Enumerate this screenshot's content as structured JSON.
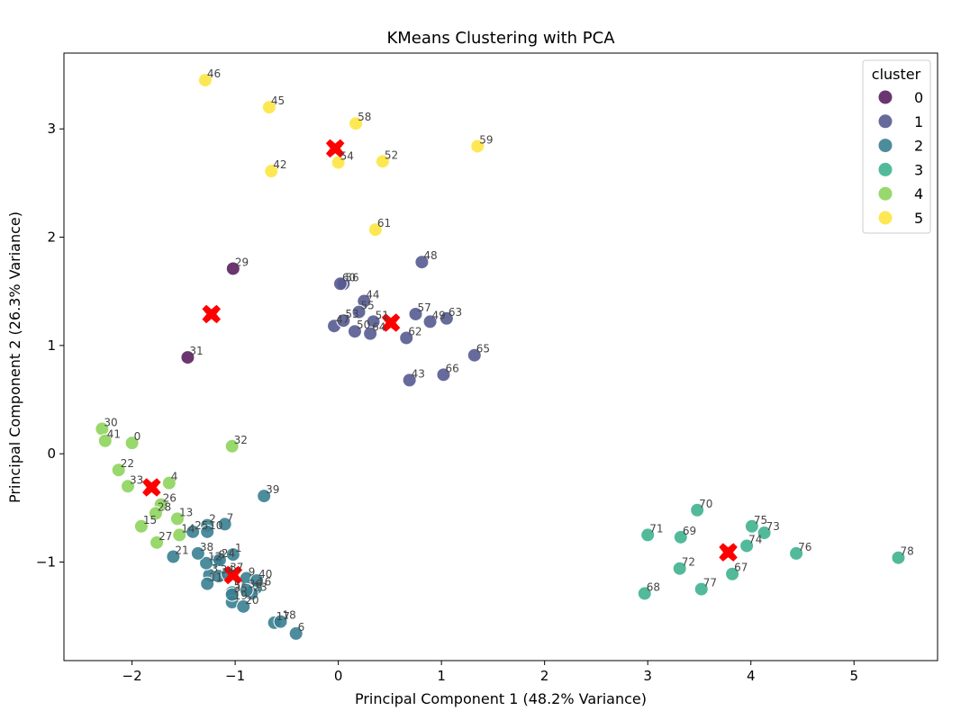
{
  "chart_data": {
    "type": "scatter",
    "title": "KMeans Clustering with PCA",
    "xlabel": "Principal Component 1 (48.2% Variance)",
    "ylabel": "Principal Component 2 (26.3% Variance)",
    "xlim": [
      -2.66,
      5.81
    ],
    "ylim": [
      -1.91,
      3.7
    ],
    "xticks": [
      -2,
      -1,
      0,
      1,
      2,
      3,
      4,
      5
    ],
    "yticks": [
      -1,
      0,
      1,
      2,
      3
    ],
    "xtick_labels": [
      "−2",
      "−1",
      "0",
      "1",
      "2",
      "3",
      "4",
      "5"
    ],
    "ytick_labels": [
      "−1",
      "0",
      "1",
      "2",
      "3"
    ],
    "grid": false,
    "legend": {
      "title": "cluster",
      "position": "top-right",
      "entries": [
        "0",
        "1",
        "2",
        "3",
        "4",
        "5"
      ]
    },
    "cluster_colors": [
      "#5b2060",
      "#575b91",
      "#3a7f91",
      "#3fb28f",
      "#8dd45c",
      "#fde541"
    ],
    "centroid_color": "#ff0000",
    "points": [
      {
        "label": "0",
        "x": -2.0,
        "y": 0.1,
        "cluster": 4
      },
      {
        "label": "1",
        "x": -1.02,
        "y": -0.93,
        "cluster": 2
      },
      {
        "label": "2",
        "x": -1.27,
        "y": -0.66,
        "cluster": 2
      },
      {
        "label": "3",
        "x": -1.25,
        "y": -1.12,
        "cluster": 2
      },
      {
        "label": "4",
        "x": -1.64,
        "y": -0.27,
        "cluster": 4
      },
      {
        "label": "5",
        "x": -1.03,
        "y": -1.28,
        "cluster": 2
      },
      {
        "label": "6",
        "x": -0.41,
        "y": -1.66,
        "cluster": 2
      },
      {
        "label": "7",
        "x": -1.1,
        "y": -0.65,
        "cluster": 2
      },
      {
        "label": "8",
        "x": -1.18,
        "y": -0.99,
        "cluster": 2
      },
      {
        "label": "9",
        "x": -0.89,
        "y": -1.15,
        "cluster": 2
      },
      {
        "label": "10",
        "x": -1.27,
        "y": -0.72,
        "cluster": 2
      },
      {
        "label": "11",
        "x": -1.27,
        "y": -1.2,
        "cluster": 2
      },
      {
        "label": "12",
        "x": -1.28,
        "y": -1.01,
        "cluster": 2
      },
      {
        "label": "13",
        "x": -1.56,
        "y": -0.6,
        "cluster": 4
      },
      {
        "label": "14",
        "x": -1.54,
        "y": -0.75,
        "cluster": 4
      },
      {
        "label": "15",
        "x": -1.91,
        "y": -0.67,
        "cluster": 4
      },
      {
        "label": "16",
        "x": -0.8,
        "y": -1.24,
        "cluster": 2
      },
      {
        "label": "17",
        "x": -0.62,
        "y": -1.56,
        "cluster": 2
      },
      {
        "label": "18",
        "x": -0.56,
        "y": -1.55,
        "cluster": 2
      },
      {
        "label": "19",
        "x": -1.03,
        "y": -1.37,
        "cluster": 2
      },
      {
        "label": "20",
        "x": -0.92,
        "y": -1.41,
        "cluster": 2
      },
      {
        "label": "21",
        "x": -1.6,
        "y": -0.95,
        "cluster": 2
      },
      {
        "label": "22",
        "x": -2.13,
        "y": -0.15,
        "cluster": 4
      },
      {
        "label": "23",
        "x": -0.84,
        "y": -1.29,
        "cluster": 2
      },
      {
        "label": "24",
        "x": -1.15,
        "y": -0.98,
        "cluster": 2
      },
      {
        "label": "25",
        "x": -1.41,
        "y": -0.72,
        "cluster": 2
      },
      {
        "label": "26",
        "x": -1.72,
        "y": -0.47,
        "cluster": 4
      },
      {
        "label": "27",
        "x": -1.76,
        "y": -0.82,
        "cluster": 4
      },
      {
        "label": "28",
        "x": -1.77,
        "y": -0.55,
        "cluster": 4
      },
      {
        "label": "29",
        "x": -1.02,
        "y": 1.71,
        "cluster": 0
      },
      {
        "label": "30",
        "x": -2.29,
        "y": 0.23,
        "cluster": 4
      },
      {
        "label": "31",
        "x": -1.46,
        "y": 0.89,
        "cluster": 0
      },
      {
        "label": "32",
        "x": -1.03,
        "y": 0.07,
        "cluster": 4
      },
      {
        "label": "33",
        "x": -2.04,
        "y": -0.3,
        "cluster": 4
      },
      {
        "label": "34",
        "x": -1.16,
        "y": -1.13,
        "cluster": 2
      },
      {
        "label": "35",
        "x": -1.03,
        "y": -1.3,
        "cluster": 2
      },
      {
        "label": "36",
        "x": -0.89,
        "y": -1.26,
        "cluster": 2
      },
      {
        "label": "37",
        "x": -1.07,
        "y": -1.11,
        "cluster": 2
      },
      {
        "label": "38",
        "x": -1.36,
        "y": -0.92,
        "cluster": 2
      },
      {
        "label": "39",
        "x": -0.72,
        "y": -0.39,
        "cluster": 2
      },
      {
        "label": "40",
        "x": -0.79,
        "y": -1.17,
        "cluster": 2
      },
      {
        "label": "41",
        "x": -2.26,
        "y": 0.12,
        "cluster": 4
      },
      {
        "label": "42",
        "x": -0.65,
        "y": 2.61,
        "cluster": 5
      },
      {
        "label": "43",
        "x": 0.69,
        "y": 0.68,
        "cluster": 1
      },
      {
        "label": "44",
        "x": 0.25,
        "y": 1.41,
        "cluster": 1
      },
      {
        "label": "45",
        "x": -0.67,
        "y": 3.2,
        "cluster": 5
      },
      {
        "label": "46",
        "x": -1.29,
        "y": 3.45,
        "cluster": 5
      },
      {
        "label": "47",
        "x": -0.04,
        "y": 1.18,
        "cluster": 1
      },
      {
        "label": "48",
        "x": 0.81,
        "y": 1.77,
        "cluster": 1
      },
      {
        "label": "49",
        "x": 0.89,
        "y": 1.22,
        "cluster": 1
      },
      {
        "label": "50",
        "x": 0.16,
        "y": 1.13,
        "cluster": 1
      },
      {
        "label": "51",
        "x": 0.34,
        "y": 1.22,
        "cluster": 1
      },
      {
        "label": "52",
        "x": 0.43,
        "y": 2.7,
        "cluster": 5
      },
      {
        "label": "53",
        "x": 0.05,
        "y": 1.23,
        "cluster": 1
      },
      {
        "label": "54",
        "x": 0.0,
        "y": 2.69,
        "cluster": 5
      },
      {
        "label": "55",
        "x": 0.2,
        "y": 1.31,
        "cluster": 1
      },
      {
        "label": "56",
        "x": 0.05,
        "y": 1.57,
        "cluster": 1
      },
      {
        "label": "57",
        "x": 0.75,
        "y": 1.29,
        "cluster": 1
      },
      {
        "label": "58",
        "x": 0.17,
        "y": 3.05,
        "cluster": 5
      },
      {
        "label": "59",
        "x": 1.35,
        "y": 2.84,
        "cluster": 5
      },
      {
        "label": "60",
        "x": 0.02,
        "y": 1.57,
        "cluster": 1
      },
      {
        "label": "61",
        "x": 0.36,
        "y": 2.07,
        "cluster": 5
      },
      {
        "label": "62",
        "x": 0.66,
        "y": 1.07,
        "cluster": 1
      },
      {
        "label": "63",
        "x": 1.05,
        "y": 1.25,
        "cluster": 1
      },
      {
        "label": "64",
        "x": 0.31,
        "y": 1.11,
        "cluster": 1
      },
      {
        "label": "65",
        "x": 1.32,
        "y": 0.91,
        "cluster": 1
      },
      {
        "label": "66",
        "x": 1.02,
        "y": 0.73,
        "cluster": 1
      },
      {
        "label": "67",
        "x": 3.82,
        "y": -1.11,
        "cluster": 3
      },
      {
        "label": "68",
        "x": 2.97,
        "y": -1.29,
        "cluster": 3
      },
      {
        "label": "69",
        "x": 3.32,
        "y": -0.77,
        "cluster": 3
      },
      {
        "label": "70",
        "x": 3.48,
        "y": -0.52,
        "cluster": 3
      },
      {
        "label": "71",
        "x": 3.0,
        "y": -0.75,
        "cluster": 3
      },
      {
        "label": "72",
        "x": 3.31,
        "y": -1.06,
        "cluster": 3
      },
      {
        "label": "73",
        "x": 4.13,
        "y": -0.73,
        "cluster": 3
      },
      {
        "label": "74",
        "x": 3.96,
        "y": -0.85,
        "cluster": 3
      },
      {
        "label": "75",
        "x": 4.01,
        "y": -0.67,
        "cluster": 3
      },
      {
        "label": "76",
        "x": 4.44,
        "y": -0.92,
        "cluster": 3
      },
      {
        "label": "77",
        "x": 3.52,
        "y": -1.25,
        "cluster": 3
      },
      {
        "label": "78",
        "x": 5.43,
        "y": -0.96,
        "cluster": 3
      }
    ],
    "centroids": [
      {
        "x": -1.23,
        "y": 1.29
      },
      {
        "x": 0.51,
        "y": 1.21
      },
      {
        "x": -1.02,
        "y": -1.12
      },
      {
        "x": 3.78,
        "y": -0.91
      },
      {
        "x": -1.81,
        "y": -0.31
      },
      {
        "x": -0.03,
        "y": 2.82
      }
    ]
  }
}
